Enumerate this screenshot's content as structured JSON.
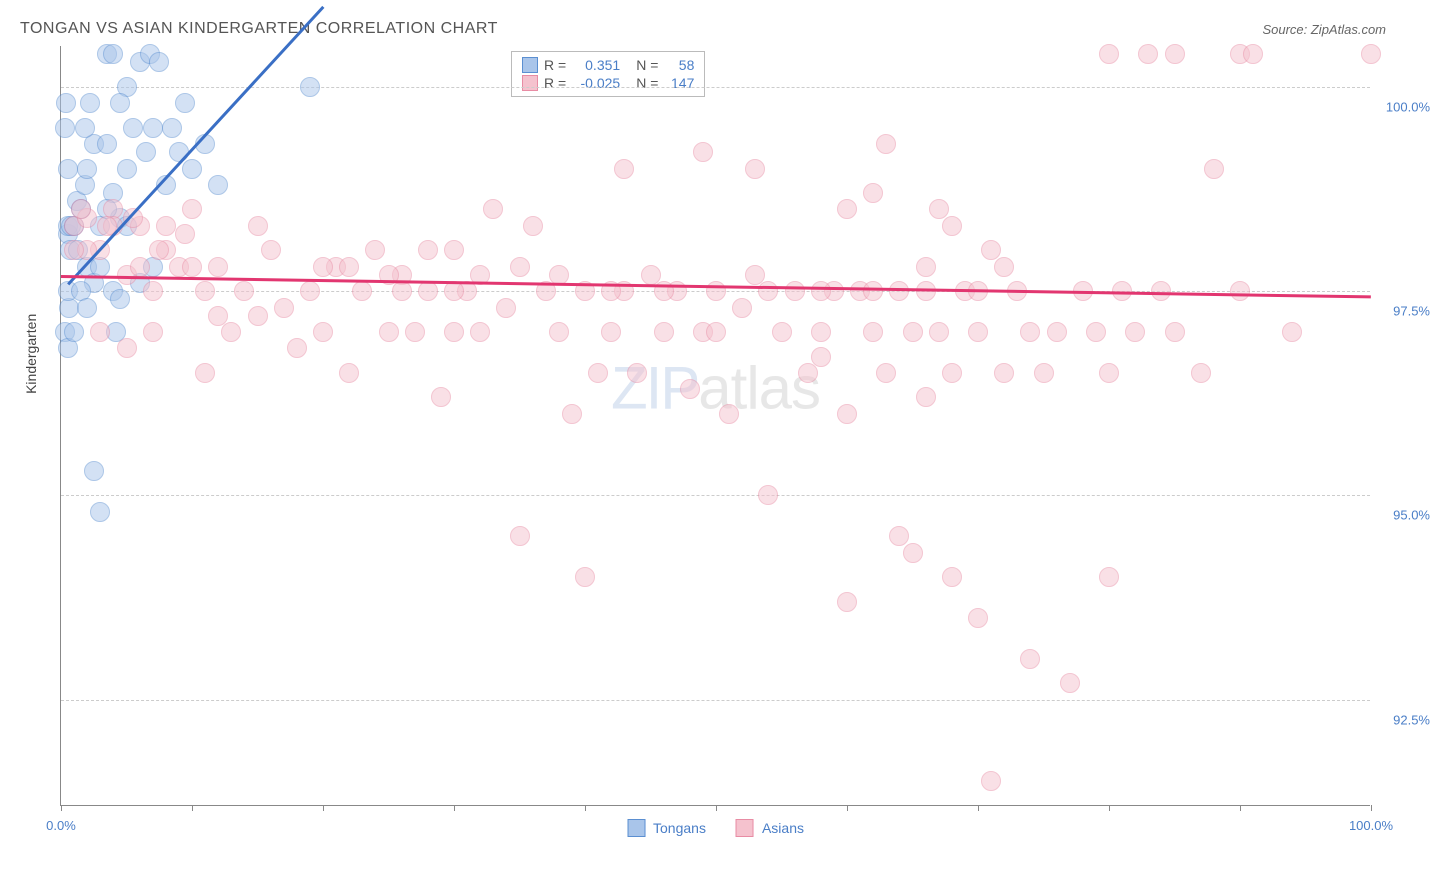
{
  "title": "TONGAN VS ASIAN KINDERGARTEN CORRELATION CHART",
  "source_label": "Source: ZipAtlas.com",
  "y_axis_label": "Kindergarten",
  "watermark": {
    "part1": "ZIP",
    "part2": "atlas"
  },
  "chart": {
    "type": "scatter",
    "xlim": [
      0,
      100
    ],
    "ylim": [
      91.2,
      100.5
    ],
    "y_gridlines": [
      92.5,
      95.0,
      97.5,
      100.0
    ],
    "y_tick_labels": [
      "92.5%",
      "95.0%",
      "97.5%",
      "100.0%"
    ],
    "x_ticks": [
      0,
      10,
      20,
      30,
      40,
      50,
      60,
      70,
      80,
      90,
      100
    ],
    "x_tick_labels": {
      "0": "0.0%",
      "100": "100.0%"
    },
    "background_color": "#ffffff",
    "grid_color": "#cccccc",
    "axis_color": "#888888",
    "marker_radius": 10,
    "marker_opacity": 0.5
  },
  "series": [
    {
      "name": "Tongans",
      "color_fill": "#a9c5ea",
      "color_stroke": "#5b8fd1",
      "r_value": "0.351",
      "n_value": "58",
      "trend": {
        "x1": 0.5,
        "y1": 97.6,
        "x2": 20,
        "y2": 101.0,
        "color": "#3a6fc5"
      },
      "points": [
        [
          0.5,
          98.2
        ],
        [
          0.5,
          98.3
        ],
        [
          0.8,
          98.3
        ],
        [
          0.7,
          98.0
        ],
        [
          0.6,
          97.3
        ],
        [
          0.5,
          97.5
        ],
        [
          1.0,
          98.3
        ],
        [
          1.2,
          98.6
        ],
        [
          1.5,
          98.5
        ],
        [
          1.3,
          98.0
        ],
        [
          1.8,
          98.8
        ],
        [
          2.0,
          99.0
        ],
        [
          2.5,
          99.3
        ],
        [
          3.0,
          98.3
        ],
        [
          3.5,
          99.3
        ],
        [
          4.0,
          98.7
        ],
        [
          4.2,
          97.0
        ],
        [
          4.5,
          98.4
        ],
        [
          5.0,
          99.0
        ],
        [
          5.5,
          99.5
        ],
        [
          5.0,
          100.0
        ],
        [
          6.0,
          100.3
        ],
        [
          6.5,
          99.2
        ],
        [
          6.8,
          100.4
        ],
        [
          7.0,
          99.5
        ],
        [
          7.5,
          100.3
        ],
        [
          8.0,
          98.8
        ],
        [
          8.5,
          99.5
        ],
        [
          9.0,
          99.2
        ],
        [
          2.0,
          97.8
        ],
        [
          2.5,
          97.6
        ],
        [
          3.0,
          97.8
        ],
        [
          0.3,
          97.0
        ],
        [
          0.5,
          96.8
        ],
        [
          1.0,
          97.0
        ],
        [
          4.0,
          97.5
        ],
        [
          1.5,
          97.5
        ],
        [
          2.0,
          97.3
        ],
        [
          3.5,
          98.5
        ],
        [
          4.5,
          99.8
        ],
        [
          5.0,
          98.3
        ],
        [
          6.0,
          97.6
        ],
        [
          0.5,
          99.0
        ],
        [
          0.3,
          99.5
        ],
        [
          0.4,
          99.8
        ],
        [
          2.5,
          95.3
        ],
        [
          3.0,
          94.8
        ],
        [
          7.0,
          97.8
        ],
        [
          9.5,
          99.8
        ],
        [
          10.0,
          99.0
        ],
        [
          11.0,
          99.3
        ],
        [
          12.0,
          98.8
        ],
        [
          4.5,
          97.4
        ],
        [
          19.0,
          100.0
        ],
        [
          3.5,
          100.4
        ],
        [
          4.0,
          100.4
        ],
        [
          1.8,
          99.5
        ],
        [
          2.2,
          99.8
        ]
      ]
    },
    {
      "name": "Asians",
      "color_fill": "#f5c2ce",
      "color_stroke": "#e88ca4",
      "r_value": "-0.025",
      "n_value": "147",
      "trend": {
        "x1": 0,
        "y1": 97.7,
        "x2": 100,
        "y2": 97.45,
        "color": "#e23670"
      },
      "points": [
        [
          1.0,
          98.3
        ],
        [
          2.0,
          98.4
        ],
        [
          3.0,
          98.0
        ],
        [
          4.0,
          98.5
        ],
        [
          5.0,
          97.7
        ],
        [
          6.0,
          98.3
        ],
        [
          7.0,
          97.5
        ],
        [
          8.0,
          98.0
        ],
        [
          9.0,
          97.8
        ],
        [
          10.0,
          98.5
        ],
        [
          11.0,
          97.5
        ],
        [
          12.0,
          97.8
        ],
        [
          13.0,
          97.0
        ],
        [
          14.0,
          97.5
        ],
        [
          15.0,
          97.2
        ],
        [
          16.0,
          98.0
        ],
        [
          17.0,
          97.3
        ],
        [
          18.0,
          96.8
        ],
        [
          19.0,
          97.5
        ],
        [
          20.0,
          97.0
        ],
        [
          21.0,
          97.8
        ],
        [
          22.0,
          96.5
        ],
        [
          23.0,
          97.5
        ],
        [
          24.0,
          98.0
        ],
        [
          25.0,
          97.0
        ],
        [
          26.0,
          97.7
        ],
        [
          27.0,
          97.0
        ],
        [
          28.0,
          97.5
        ],
        [
          29.0,
          96.2
        ],
        [
          30.0,
          98.0
        ],
        [
          31.0,
          97.5
        ],
        [
          32.0,
          97.0
        ],
        [
          33.0,
          98.5
        ],
        [
          34.0,
          97.3
        ],
        [
          35.0,
          97.8
        ],
        [
          35.0,
          94.5
        ],
        [
          36.0,
          98.3
        ],
        [
          37.0,
          97.5
        ],
        [
          38.0,
          97.0
        ],
        [
          39.0,
          96.0
        ],
        [
          40.0,
          97.5
        ],
        [
          40.0,
          94.0
        ],
        [
          41.0,
          96.5
        ],
        [
          42.0,
          97.0
        ],
        [
          43.0,
          97.5
        ],
        [
          43.0,
          99.0
        ],
        [
          44.0,
          96.5
        ],
        [
          45.0,
          97.7
        ],
        [
          46.0,
          97.0
        ],
        [
          47.0,
          97.5
        ],
        [
          48.0,
          96.3
        ],
        [
          49.0,
          97.0
        ],
        [
          49.0,
          99.2
        ],
        [
          50.0,
          97.5
        ],
        [
          51.0,
          96.0
        ],
        [
          52.0,
          97.3
        ],
        [
          53.0,
          97.7
        ],
        [
          53.0,
          99.0
        ],
        [
          54.0,
          95.0
        ],
        [
          55.0,
          97.0
        ],
        [
          56.0,
          97.5
        ],
        [
          57.0,
          96.5
        ],
        [
          58.0,
          97.0
        ],
        [
          59.0,
          97.5
        ],
        [
          60.0,
          96.0
        ],
        [
          60.0,
          98.5
        ],
        [
          61.0,
          97.5
        ],
        [
          62.0,
          97.0
        ],
        [
          62.0,
          98.7
        ],
        [
          63.0,
          96.5
        ],
        [
          63.0,
          99.3
        ],
        [
          64.0,
          97.5
        ],
        [
          65.0,
          97.0
        ],
        [
          65.0,
          94.3
        ],
        [
          66.0,
          97.8
        ],
        [
          67.0,
          97.0
        ],
        [
          68.0,
          96.5
        ],
        [
          68.0,
          94.0
        ],
        [
          69.0,
          97.5
        ],
        [
          70.0,
          97.0
        ],
        [
          70.0,
          93.5
        ],
        [
          71.0,
          98.0
        ],
        [
          72.0,
          96.5
        ],
        [
          73.0,
          97.5
        ],
        [
          74.0,
          97.0
        ],
        [
          74.0,
          93.0
        ],
        [
          75.0,
          96.5
        ],
        [
          76.0,
          97.0
        ],
        [
          77.0,
          92.7
        ],
        [
          78.0,
          97.5
        ],
        [
          79.0,
          97.0
        ],
        [
          80.0,
          96.5
        ],
        [
          80.0,
          100.4
        ],
        [
          81.0,
          97.5
        ],
        [
          82.0,
          97.0
        ],
        [
          83.0,
          100.4
        ],
        [
          84.0,
          97.5
        ],
        [
          85.0,
          97.0
        ],
        [
          85.0,
          100.4
        ],
        [
          87.0,
          96.5
        ],
        [
          88.0,
          99.0
        ],
        [
          90.0,
          97.5
        ],
        [
          90.0,
          100.4
        ],
        [
          91.0,
          100.4
        ],
        [
          94.0,
          97.0
        ],
        [
          100.0,
          100.4
        ],
        [
          3.0,
          97.0
        ],
        [
          5.0,
          96.8
        ],
        [
          7.0,
          97.0
        ],
        [
          11.0,
          96.5
        ],
        [
          15.0,
          98.3
        ],
        [
          20.0,
          97.8
        ],
        [
          25.0,
          97.7
        ],
        [
          30.0,
          97.0
        ],
        [
          2.0,
          98.0
        ],
        [
          4.0,
          98.3
        ],
        [
          6.0,
          97.8
        ],
        [
          8.0,
          98.3
        ],
        [
          10.0,
          97.8
        ],
        [
          12.0,
          97.2
        ],
        [
          3.5,
          98.3
        ],
        [
          5.5,
          98.4
        ],
        [
          7.5,
          98.0
        ],
        [
          9.5,
          98.2
        ],
        [
          1.5,
          98.5
        ],
        [
          1.0,
          98.0
        ],
        [
          22.0,
          97.8
        ],
        [
          26.0,
          97.5
        ],
        [
          28.0,
          98.0
        ],
        [
          30.0,
          97.5
        ],
        [
          32.0,
          97.7
        ],
        [
          38.0,
          97.7
        ],
        [
          42.0,
          97.5
        ],
        [
          46.0,
          97.5
        ],
        [
          50.0,
          97.0
        ],
        [
          54.0,
          97.5
        ],
        [
          58.0,
          97.5
        ],
        [
          62.0,
          97.5
        ],
        [
          66.0,
          97.5
        ],
        [
          70.0,
          97.5
        ],
        [
          68.0,
          98.3
        ],
        [
          72.0,
          97.8
        ],
        [
          67.0,
          98.5
        ],
        [
          71.0,
          91.5
        ],
        [
          80.0,
          94.0
        ],
        [
          60.0,
          93.7
        ],
        [
          64.0,
          94.5
        ],
        [
          66.0,
          96.2
        ],
        [
          58.0,
          96.7
        ]
      ]
    }
  ],
  "stat_legend_labels": {
    "r_prefix": "R =",
    "n_prefix": "N ="
  }
}
